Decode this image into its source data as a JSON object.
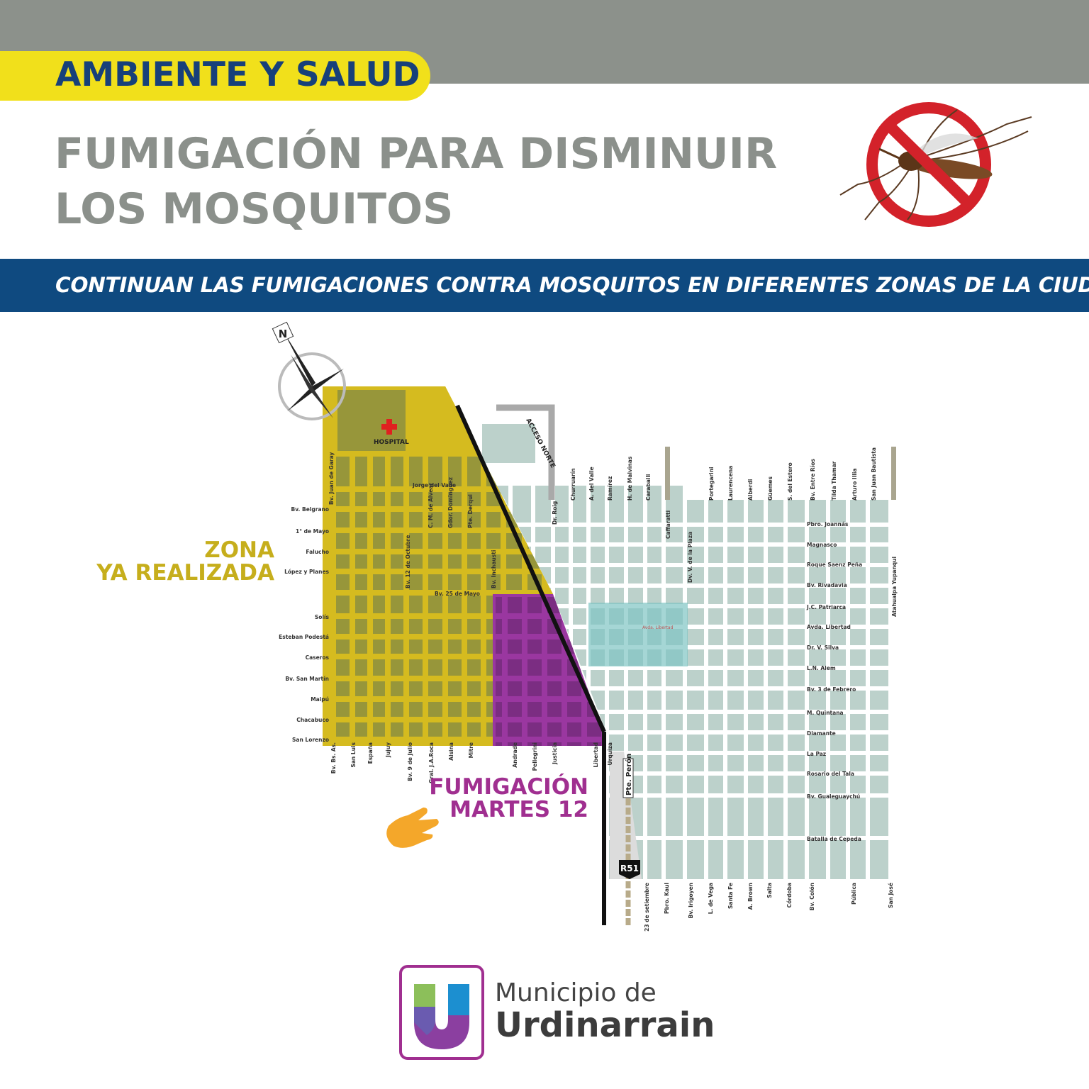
{
  "header": {
    "category": "AMBIENTE Y SALUD",
    "title_line1": "FUMIGACIÓN PARA DISMINUIR",
    "title_line2": "LOS MOSQUITOS",
    "subtitle": "CONTINUAN LAS FUMIGACIONES CONTRA MOSQUITOS EN DIFERENTES ZONAS DE LA CIUDAD",
    "icon": "no-mosquito-icon"
  },
  "colors": {
    "top_band": "#8c918b",
    "category_bg": "#f1e01b",
    "category_text": "#17407a",
    "title": "#8b908b",
    "subtitle_band": "#0f4a80",
    "zone_done": "#c6ae1c",
    "zone_next": "#a02f90",
    "map_blocks": "#bcd1cb"
  },
  "legend": {
    "zone_done_line1": "ZONA",
    "zone_done_line2": "YA REALIZADA",
    "zone_next_line1": "FUMIGACIÓN",
    "zone_next_line2": "MARTES 12",
    "pointer_icon": "hand-pointer-icon"
  },
  "map": {
    "compass_label": "N",
    "hospital": "HOSPITAL",
    "acceso_norte": "ACCESO NORTE",
    "route": "R51",
    "pte_peron": "Pte. Perón",
    "avda_libertad_small": "Avda. Libertad",
    "west_rows": [
      "Bv. Belgrano",
      "1° de Mayo",
      "Falucho",
      "López y Planes",
      "Solís",
      "Esteban Podestá",
      "Caseros",
      "Bv. San Martín",
      "Maipú",
      "Chacabuco",
      "San Lorenzo"
    ],
    "west_cols_bottom": [
      "Bv. Bs. As.",
      "San Luis",
      "España",
      "Jujuy",
      "Bv. 9 de Julio",
      "Gral. J.A.Roca",
      "Alsina",
      "Mitre",
      "Andrade",
      "Pellegrini",
      "Justicia",
      "Libertad",
      "Urquiza"
    ],
    "west_inner": [
      "Bv. Juan de Garay",
      "Bv. 12 de Octubre",
      "C. M. de Alvear",
      "Gdor. Dominguez",
      "Pte. Derqui",
      "Bv. Inchausti"
    ],
    "west_horizontal": [
      "Jorge del Valle",
      "Bv. 25 de Mayo"
    ],
    "east_cols_top": [
      "Dr. Roig",
      "Churruarín",
      "A. del Valle",
      "Ramírez",
      "H. de Malvinas",
      "Caraballi",
      "Caffaratti",
      "Dv. V. de la Plaza",
      "Portegarini",
      "Laurencena",
      "Alberdi",
      "Güemes",
      "S. del Estero",
      "Bv. Entre Ríos",
      "Tilda Thamar",
      "Arturo Illia",
      "San Juan Bautista"
    ],
    "east_rows": [
      "Pbro. Joannás",
      "Magnasco",
      "Roque Saenz Peña",
      "Bv. Rivadavia",
      "J.C. Patriarca",
      "Avda. Libertad",
      "Dr. V. Silva",
      "L.N. Alem",
      "Bv. 3 de Febrero",
      "M. Quintana",
      "Diamante",
      "La Paz",
      "Rosario del Tala",
      "Bv. Gualeguaychú",
      "Batalla de Cepeda"
    ],
    "east_cols_bottom": [
      "23 de setiembre",
      "Pbro. Kaul",
      "Bv. Irigoyen",
      "L. de Vega",
      "Santa Fe",
      "A. Brown",
      "Salta",
      "Córdoba",
      "Bv. Colón",
      "Pública",
      "San José"
    ],
    "east_side": "Atahualpa Yupanqui"
  },
  "footer": {
    "logo_line1": "Municipio de",
    "logo_line2": "Urdinarrain",
    "logo_letter": "U"
  }
}
